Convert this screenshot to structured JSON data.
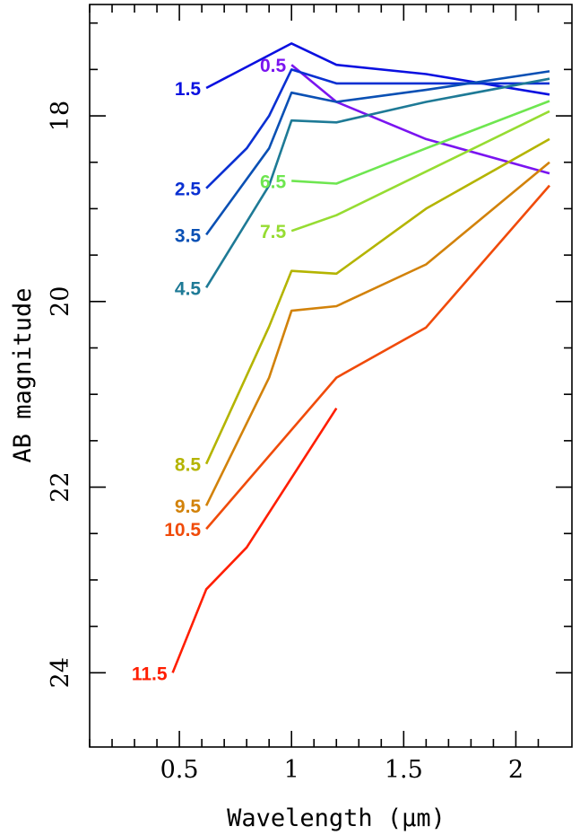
{
  "chart_data": {
    "type": "line",
    "title": "",
    "xlabel": "Wavelength (μm)",
    "ylabel": "AB magnitude",
    "xlim": [
      0.1,
      2.25
    ],
    "ylim": [
      16.8,
      24.8
    ],
    "y_inverted": true,
    "x_ticks": [
      {
        "value": 0.5,
        "label": "0.5"
      },
      {
        "value": 1,
        "label": "1"
      },
      {
        "value": 1.5,
        "label": "1.5"
      },
      {
        "value": 2,
        "label": "2"
      }
    ],
    "y_ticks": [
      {
        "value": 18,
        "label": "18"
      },
      {
        "value": 20,
        "label": "20"
      },
      {
        "value": 22,
        "label": "22"
      },
      {
        "value": 24,
        "label": "24"
      }
    ],
    "grid": false,
    "legend": "none",
    "series": [
      {
        "name": "0.5",
        "color": "#7a14f0",
        "x": [
          1.0,
          1.2,
          1.6,
          2.15
        ],
        "y": [
          17.45,
          17.85,
          18.25,
          18.62
        ]
      },
      {
        "name": "1.5",
        "color": "#0a10e0",
        "x": [
          0.62,
          1.0,
          1.2,
          1.6,
          2.15
        ],
        "y": [
          17.7,
          17.22,
          17.45,
          17.55,
          17.77
        ]
      },
      {
        "name": "2.5",
        "color": "#0a30d2",
        "x": [
          0.62,
          0.8,
          0.9,
          1.0,
          1.2,
          1.6,
          2.15
        ],
        "y": [
          18.78,
          18.35,
          18.0,
          17.5,
          17.65,
          17.65,
          17.65
        ]
      },
      {
        "name": "3.5",
        "color": "#0a50b4",
        "x": [
          0.62,
          0.9,
          1.0,
          1.2,
          1.6,
          2.15
        ],
        "y": [
          19.28,
          18.35,
          17.75,
          17.85,
          17.72,
          17.52
        ]
      },
      {
        "name": "4.5",
        "color": "#1e7a96",
        "x": [
          0.62,
          0.9,
          1.0,
          1.2,
          1.6,
          2.15
        ],
        "y": [
          19.85,
          18.75,
          18.05,
          18.07,
          17.85,
          17.6
        ]
      },
      {
        "name": "6.5",
        "color": "#6ee650",
        "x": [
          1.0,
          1.2,
          1.6,
          2.15
        ],
        "y": [
          18.7,
          18.73,
          18.35,
          17.84
        ]
      },
      {
        "name": "7.5",
        "color": "#96dc32",
        "x": [
          1.0,
          1.2,
          1.6,
          2.15
        ],
        "y": [
          19.24,
          19.07,
          18.6,
          17.95
        ]
      },
      {
        "name": "8.5",
        "color": "#b4b400",
        "x": [
          0.62,
          0.9,
          1.0,
          1.2,
          1.6,
          2.15
        ],
        "y": [
          21.75,
          20.27,
          19.67,
          19.7,
          19.0,
          18.25
        ]
      },
      {
        "name": "9.5",
        "color": "#d2820a",
        "x": [
          0.62,
          0.9,
          1.0,
          1.2,
          1.6,
          2.15
        ],
        "y": [
          22.2,
          20.82,
          20.1,
          20.05,
          19.6,
          18.5
        ]
      },
      {
        "name": "10.5",
        "color": "#f04b0a",
        "x": [
          0.62,
          1.2,
          1.6,
          2.15
        ],
        "y": [
          22.45,
          20.82,
          20.28,
          18.75
        ]
      },
      {
        "name": "11.5",
        "color": "#ff1e00",
        "x": [
          0.47,
          0.62,
          0.8,
          1.2
        ],
        "y": [
          24.0,
          23.1,
          22.65,
          21.15
        ]
      }
    ]
  }
}
